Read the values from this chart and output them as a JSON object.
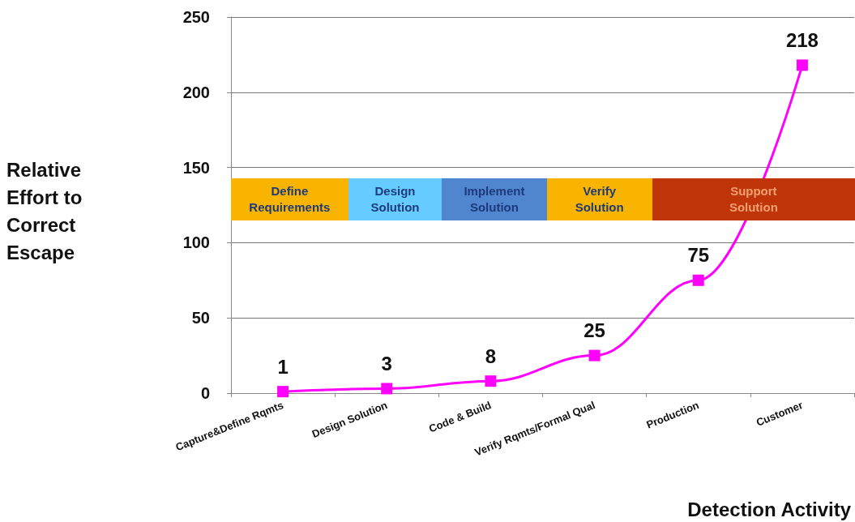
{
  "chart_data": {
    "type": "line",
    "xlabel": "Detection Activity",
    "ylabel": "Relative Effort to Correct Escape",
    "categories": [
      "Capture&Define Rqmts",
      "Design Solution",
      "Code & Build",
      "Verify Rqmts/Formal Qual",
      "Production",
      "Customer"
    ],
    "series": [
      {
        "color": "#ff00ff",
        "values": [
          1,
          3,
          8,
          25,
          75,
          218
        ]
      }
    ],
    "ylim": [
      0,
      250
    ],
    "yticks": [
      0,
      50,
      100,
      150,
      200,
      250
    ],
    "grid": "y",
    "marker": "square",
    "line_style": "solid",
    "data_labels": true,
    "annotations": [
      "Define Requirements",
      "Design Solution",
      "Implement Solution",
      "Verify Solution",
      "Support Solution"
    ]
  }
}
